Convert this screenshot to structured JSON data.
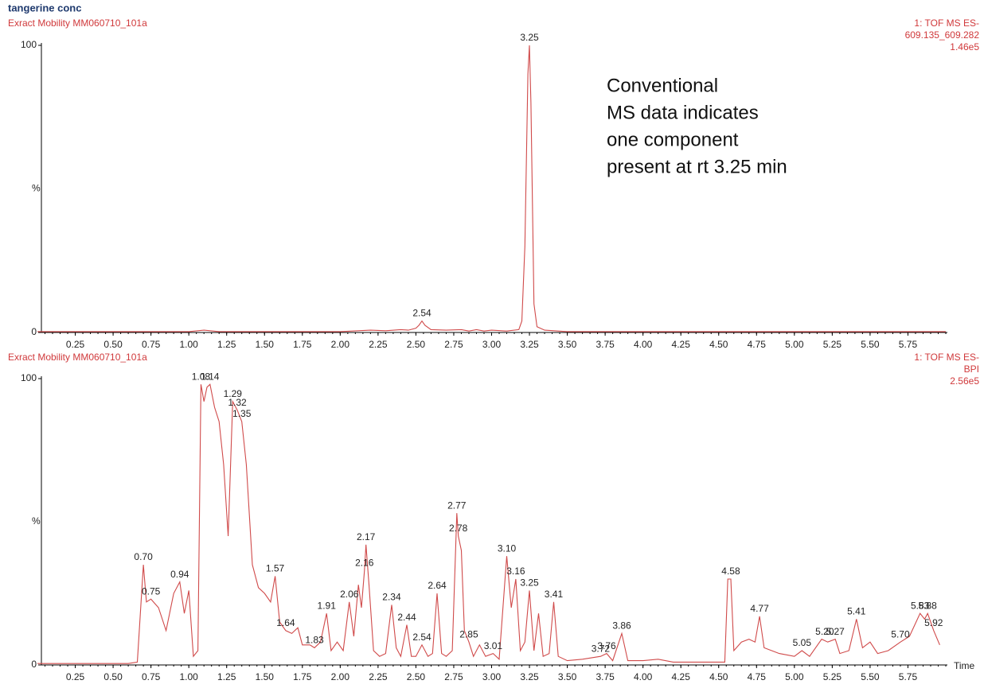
{
  "title": "tangerine conc",
  "chart_data": [
    {
      "type": "line",
      "subtitle": "Exract Mobility MM060710_101a",
      "info": [
        "1: TOF MS ES-",
        "609.135_609.282",
        "1.46e5"
      ],
      "ylabel": "%",
      "color": "#d04a4a",
      "xlim": [
        0,
        6
      ],
      "ylim": [
        0,
        100
      ],
      "yticks": [
        0,
        100
      ],
      "xticks": [
        {
          "value": 0.25,
          "label": "0.25"
        },
        {
          "value": 0.5,
          "label": "0.50"
        },
        {
          "value": 0.75,
          "label": "0.75"
        },
        {
          "value": 1,
          "label": "1.00"
        },
        {
          "value": 1.25,
          "label": "1.25"
        },
        {
          "value": 1.5,
          "label": "1.50"
        },
        {
          "value": 1.75,
          "label": "1.75"
        },
        {
          "value": 2,
          "label": "2.00"
        },
        {
          "value": 2.25,
          "label": "2.25"
        },
        {
          "value": 2.5,
          "label": "2.50"
        },
        {
          "value": 2.75,
          "label": "2.75"
        },
        {
          "value": 3,
          "label": "3.00"
        },
        {
          "value": 3.25,
          "label": "3.25"
        },
        {
          "value": 3.5,
          "label": "3.50"
        },
        {
          "value": 3.75,
          "label": "3.75"
        },
        {
          "value": 4,
          "label": "4.00"
        },
        {
          "value": 4.25,
          "label": "4.25"
        },
        {
          "value": 4.5,
          "label": "4.50"
        },
        {
          "value": 4.75,
          "label": "4.75"
        },
        {
          "value": 5,
          "label": "5.00"
        },
        {
          "value": 5.25,
          "label": "5.25"
        },
        {
          "value": 5.5,
          "label": "5.50"
        },
        {
          "value": 5.75,
          "label": "5.75"
        }
      ],
      "x": [
        0,
        0.5,
        1,
        1.1,
        1.2,
        1.5,
        2,
        2.2,
        2.3,
        2.4,
        2.45,
        2.5,
        2.52,
        2.54,
        2.56,
        2.6,
        2.7,
        2.8,
        2.85,
        2.9,
        2.95,
        3,
        3.1,
        3.18,
        3.2,
        3.22,
        3.24,
        3.25,
        3.26,
        3.28,
        3.3,
        3.35,
        3.5,
        4,
        5,
        6
      ],
      "values": [
        0.3,
        0.3,
        0.3,
        0.8,
        0.3,
        0.3,
        0.3,
        0.8,
        0.6,
        1,
        0.8,
        1.5,
        2.5,
        4,
        2.5,
        1,
        0.8,
        1,
        0.5,
        1,
        0.5,
        0.8,
        0.5,
        1,
        4,
        30,
        90,
        100,
        80,
        10,
        2,
        0.8,
        0.3,
        0.3,
        0.3,
        0.3
      ],
      "annotations": [
        {
          "x": 2.54,
          "y": 4,
          "label": "2.54"
        },
        {
          "x": 3.25,
          "y": 100,
          "label": "3.25"
        }
      ],
      "note": [
        "Conventional",
        "MS data indicates",
        "one component",
        "present at rt 3.25 min"
      ]
    },
    {
      "type": "line",
      "subtitle": "Exract Mobility MM060710_101a",
      "info": [
        "1: TOF MS ES-",
        "BPI",
        "2.56e5"
      ],
      "ylabel": "%",
      "xlabel": "Time",
      "color": "#d04a4a",
      "xlim": [
        0,
        6
      ],
      "ylim": [
        0,
        100
      ],
      "yticks": [
        0,
        100
      ],
      "xticks": [
        {
          "value": 0.25,
          "label": "0.25"
        },
        {
          "value": 0.5,
          "label": "0.50"
        },
        {
          "value": 0.75,
          "label": "0.75"
        },
        {
          "value": 1,
          "label": "1.00"
        },
        {
          "value": 1.25,
          "label": "1.25"
        },
        {
          "value": 1.5,
          "label": "1.50"
        },
        {
          "value": 1.75,
          "label": "1.75"
        },
        {
          "value": 2,
          "label": "2.00"
        },
        {
          "value": 2.25,
          "label": "2.25"
        },
        {
          "value": 2.5,
          "label": "2.50"
        },
        {
          "value": 2.75,
          "label": "2.75"
        },
        {
          "value": 3,
          "label": "3.00"
        },
        {
          "value": 3.25,
          "label": "3.25"
        },
        {
          "value": 3.5,
          "label": "3.50"
        },
        {
          "value": 3.75,
          "label": "3.75"
        },
        {
          "value": 4,
          "label": "4.00"
        },
        {
          "value": 4.25,
          "label": "4.25"
        },
        {
          "value": 4.5,
          "label": "4.50"
        },
        {
          "value": 4.75,
          "label": "4.75"
        },
        {
          "value": 5,
          "label": "5.00"
        },
        {
          "value": 5.25,
          "label": "5.25"
        },
        {
          "value": 5.5,
          "label": "5.50"
        },
        {
          "value": 5.75,
          "label": "5.75"
        }
      ],
      "x": [
        0,
        0.3,
        0.6,
        0.66,
        0.7,
        0.72,
        0.75,
        0.8,
        0.85,
        0.9,
        0.94,
        0.97,
        1,
        1.03,
        1.06,
        1.08,
        1.1,
        1.12,
        1.14,
        1.17,
        1.2,
        1.23,
        1.26,
        1.29,
        1.32,
        1.35,
        1.38,
        1.42,
        1.46,
        1.5,
        1.54,
        1.57,
        1.6,
        1.64,
        1.68,
        1.72,
        1.75,
        1.8,
        1.83,
        1.87,
        1.91,
        1.94,
        1.98,
        2.02,
        2.06,
        2.09,
        2.12,
        2.14,
        2.16,
        2.17,
        2.19,
        2.22,
        2.26,
        2.3,
        2.34,
        2.37,
        2.4,
        2.44,
        2.47,
        2.5,
        2.54,
        2.58,
        2.61,
        2.64,
        2.67,
        2.7,
        2.74,
        2.77,
        2.78,
        2.8,
        2.82,
        2.85,
        2.88,
        2.92,
        2.96,
        3.01,
        3.05,
        3.1,
        3.13,
        3.16,
        3.19,
        3.22,
        3.25,
        3.28,
        3.31,
        3.34,
        3.38,
        3.41,
        3.44,
        3.5,
        3.6,
        3.72,
        3.76,
        3.8,
        3.86,
        3.9,
        4,
        4.1,
        4.2,
        4.4,
        4.54,
        4.56,
        4.58,
        4.6,
        4.65,
        4.7,
        4.74,
        4.77,
        4.8,
        4.9,
        5,
        5.05,
        5.1,
        5.18,
        5.22,
        5.27,
        5.3,
        5.36,
        5.41,
        5.45,
        5.5,
        5.55,
        5.62,
        5.7,
        5.76,
        5.83,
        5.86,
        5.88,
        5.92,
        5.96
      ],
      "values": [
        0.5,
        0.5,
        0.5,
        1,
        35,
        22,
        23,
        20,
        12,
        25,
        29,
        18,
        26,
        3,
        5,
        98,
        92,
        97,
        98,
        90,
        85,
        70,
        45,
        92,
        89,
        85,
        70,
        35,
        27,
        25,
        22,
        31,
        15,
        12,
        11,
        13,
        7,
        7,
        6,
        8,
        18,
        5,
        8,
        5,
        22,
        10,
        28,
        20,
        33,
        42,
        28,
        5,
        3,
        4,
        21,
        6,
        3,
        14,
        3,
        3,
        7,
        3,
        4,
        25,
        4,
        3,
        5,
        53,
        45,
        40,
        12,
        8,
        3,
        7,
        3,
        4,
        2,
        38,
        20,
        30,
        5,
        8,
        26,
        5,
        18,
        3,
        4,
        22,
        3,
        1.5,
        2,
        3,
        4,
        1.5,
        11,
        1.5,
        1.5,
        2,
        1,
        1,
        1,
        30,
        30,
        5,
        8,
        9,
        8,
        17,
        6,
        4,
        3,
        5,
        3,
        9,
        8,
        9,
        4,
        5,
        16,
        6,
        8,
        4,
        5,
        8,
        10,
        18,
        16,
        18,
        12,
        7
      ],
      "annotations": [
        {
          "x": 0.7,
          "y": 35,
          "label": "0.70"
        },
        {
          "x": 0.75,
          "y": 23,
          "label": "0.75"
        },
        {
          "x": 0.94,
          "y": 29,
          "label": "0.94"
        },
        {
          "x": 1.08,
          "y": 98,
          "label": "1.08"
        },
        {
          "x": 1.14,
          "y": 98,
          "label": "1.14"
        },
        {
          "x": 1.29,
          "y": 92,
          "label": "1.29"
        },
        {
          "x": 1.32,
          "y": 89,
          "label": "1.32"
        },
        {
          "x": 1.35,
          "y": 85,
          "label": "1.35"
        },
        {
          "x": 1.57,
          "y": 31,
          "label": "1.57"
        },
        {
          "x": 1.64,
          "y": 12,
          "label": "1.64"
        },
        {
          "x": 1.83,
          "y": 6,
          "label": "1.83"
        },
        {
          "x": 1.91,
          "y": 18,
          "label": "1.91"
        },
        {
          "x": 2.06,
          "y": 22,
          "label": "2.06"
        },
        {
          "x": 2.16,
          "y": 33,
          "label": "2.16"
        },
        {
          "x": 2.17,
          "y": 42,
          "label": "2.17"
        },
        {
          "x": 2.34,
          "y": 21,
          "label": "2.34"
        },
        {
          "x": 2.44,
          "y": 14,
          "label": "2.44"
        },
        {
          "x": 2.54,
          "y": 7,
          "label": "2.54"
        },
        {
          "x": 2.64,
          "y": 25,
          "label": "2.64"
        },
        {
          "x": 2.77,
          "y": 53,
          "label": "2.77"
        },
        {
          "x": 2.78,
          "y": 45,
          "label": "2.78"
        },
        {
          "x": 2.85,
          "y": 8,
          "label": "2.85"
        },
        {
          "x": 3.01,
          "y": 4,
          "label": "3.01"
        },
        {
          "x": 3.1,
          "y": 38,
          "label": "3.10"
        },
        {
          "x": 3.16,
          "y": 30,
          "label": "3.16"
        },
        {
          "x": 3.25,
          "y": 26,
          "label": "3.25"
        },
        {
          "x": 3.41,
          "y": 22,
          "label": "3.41"
        },
        {
          "x": 3.72,
          "y": 3,
          "label": "3.72"
        },
        {
          "x": 3.76,
          "y": 4,
          "label": "3.76"
        },
        {
          "x": 3.86,
          "y": 11,
          "label": "3.86"
        },
        {
          "x": 4.58,
          "y": 30,
          "label": "4.58"
        },
        {
          "x": 4.77,
          "y": 17,
          "label": "4.77"
        },
        {
          "x": 5.05,
          "y": 5,
          "label": "5.05"
        },
        {
          "x": 5.2,
          "y": 9,
          "label": "5.20"
        },
        {
          "x": 5.27,
          "y": 9,
          "label": "5.27"
        },
        {
          "x": 5.41,
          "y": 16,
          "label": "5.41"
        },
        {
          "x": 5.7,
          "y": 8,
          "label": "5.70"
        },
        {
          "x": 5.83,
          "y": 18,
          "label": "5.83"
        },
        {
          "x": 5.88,
          "y": 18,
          "label": "5.88"
        },
        {
          "x": 5.92,
          "y": 12,
          "label": "5.92"
        }
      ]
    }
  ]
}
